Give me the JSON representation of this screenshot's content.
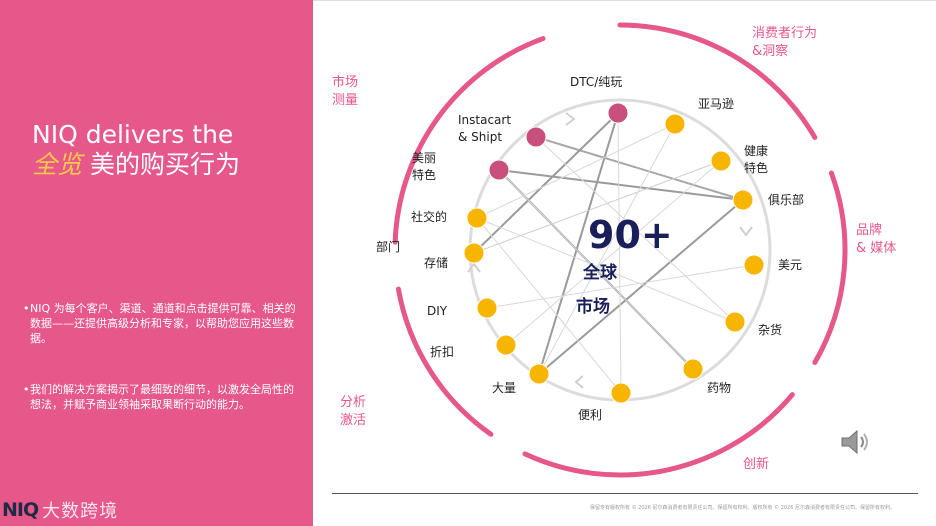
{
  "slide": {
    "headline_pre": "NIQ delivers the",
    "headline_highlight": "全览",
    "headline_post": " 美的购买行为",
    "bullets": [
      "NIQ 为每个客户、渠道、通道和点击提供可靠、相关的数据——还提供高级分析和专家，以帮助您应用这些数据。",
      "我们的解决方案揭示了最细致的细节，以激发全局性的想法，并赋予商业领袖采取果断行动的能力。"
    ],
    "logo": {
      "brand": "NIQ",
      "watermark": "大数跨境"
    },
    "footer": "保留专有版权所有 © 2026 尼尔森消费者有限责任公司。保留所有权利。版权所有 © 2026 尼尔森消费者有限责任公司。保留所有权利。"
  },
  "diagram": {
    "center": {
      "number": "90+",
      "line1": "全球",
      "line2": "市场"
    },
    "categories": {
      "top_left": "市场\n测量",
      "top_right": "消费者行为\n&洞察",
      "right": "品牌\n& 媒体",
      "bottom": "创新",
      "left": "分析\n激活"
    },
    "nodes": [
      {
        "label": "DTC/纯玩",
        "kind": "pink"
      },
      {
        "label": "亚马逊",
        "kind": "yellow"
      },
      {
        "label": "健康\n特色",
        "kind": "yellow"
      },
      {
        "label": "俱乐部",
        "kind": "yellow"
      },
      {
        "label": "美元",
        "kind": "yellow"
      },
      {
        "label": "杂货",
        "kind": "yellow"
      },
      {
        "label": "药物",
        "kind": "yellow"
      },
      {
        "label": "便利",
        "kind": "yellow"
      },
      {
        "label": "大量",
        "kind": "yellow"
      },
      {
        "label": "折扣",
        "kind": "yellow"
      },
      {
        "label": "DIY",
        "kind": "yellow"
      },
      {
        "label": "存储",
        "kind": "yellow"
      },
      {
        "label": "社交的",
        "kind": "yellow"
      },
      {
        "label": "美丽\n特色",
        "kind": "pink"
      },
      {
        "label": "Instacart\n& Shipt",
        "kind": "pink"
      }
    ],
    "side_label": "部门",
    "colors": {
      "pink": "#c94f7c",
      "yellow": "#f7b500",
      "accent": "#e6578a",
      "navy": "#1a1f5a"
    }
  }
}
